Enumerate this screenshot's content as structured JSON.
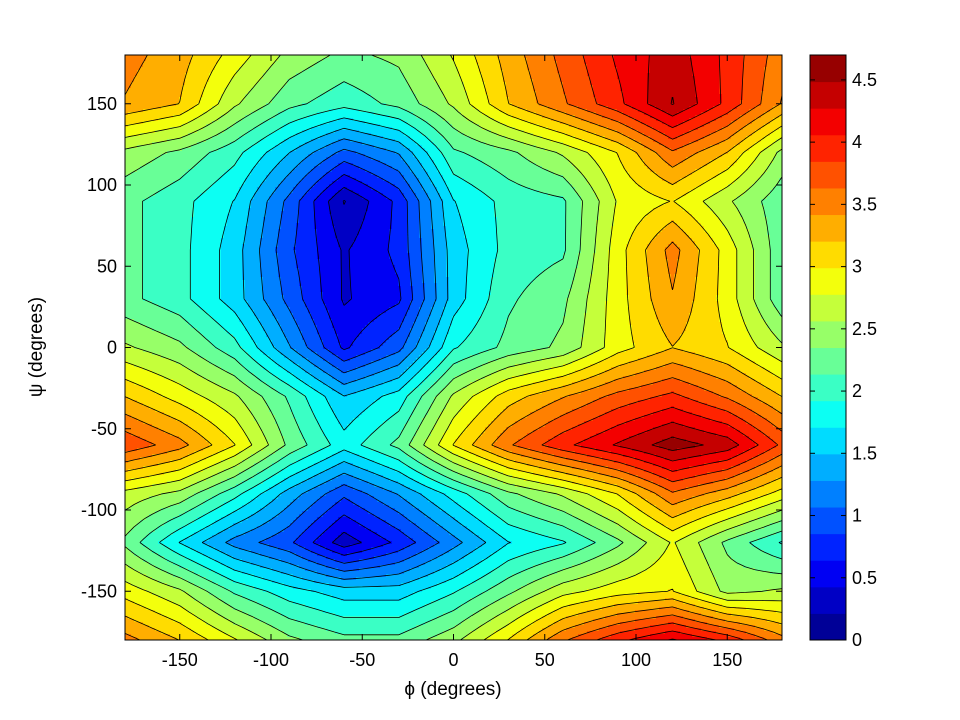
{
  "chart_data": {
    "type": "heatmap",
    "subtype": "filled-contour",
    "title": "",
    "xlabel": "ϕ (degrees)",
    "ylabel": "ψ (degrees)",
    "xlim": [
      -180,
      180
    ],
    "ylim": [
      -180,
      180
    ],
    "xticks": [
      "-150",
      "-100",
      "-50",
      "0",
      "50",
      "100",
      "150"
    ],
    "yticks": [
      "-150",
      "-100",
      "-50",
      "0",
      "50",
      "100",
      "150"
    ],
    "xtick_values": [
      -150,
      -100,
      -50,
      0,
      50,
      100,
      150
    ],
    "ytick_values": [
      -150,
      -100,
      -50,
      0,
      50,
      100,
      150
    ],
    "colorbar": {
      "colormap": "jet",
      "range": [
        0,
        4.7
      ],
      "tick_values": [
        0,
        0.5,
        1,
        1.5,
        2,
        2.5,
        3,
        3.5,
        4,
        4.5
      ],
      "tick_labels": [
        "0",
        "0.5",
        "1",
        "1.5",
        "2",
        "2.5",
        "3",
        "3.5",
        "4",
        "4.5"
      ]
    },
    "contour_levels": 22,
    "grid": false,
    "phi": [
      -180,
      -150,
      -120,
      -90,
      -60,
      -30,
      0,
      30,
      60,
      90,
      120,
      150,
      180
    ],
    "psi": [
      -180,
      -150,
      -120,
      -90,
      -60,
      -30,
      0,
      30,
      60,
      90,
      120,
      150,
      180
    ],
    "z": [
      [
        3.5,
        3.2,
        2.8,
        2.4,
        2.2,
        2.2,
        2.5,
        3.0,
        3.6,
        4.0,
        4.3,
        4.0,
        3.5
      ],
      [
        2.9,
        2.6,
        2.1,
        1.8,
        1.6,
        1.6,
        1.9,
        2.3,
        2.7,
        2.9,
        3.0,
        2.5,
        2.6
      ],
      [
        2.3,
        1.7,
        1.2,
        0.9,
        0.3,
        0.7,
        1.2,
        1.7,
        1.9,
        2.3,
        2.8,
        2.3,
        1.9
      ],
      [
        2.7,
        2.5,
        2.0,
        1.4,
        0.9,
        1.3,
        1.8,
        2.3,
        2.6,
        3.0,
        3.6,
        3.3,
        2.9
      ],
      [
        3.8,
        3.5,
        3.0,
        2.3,
        1.8,
        2.2,
        3.0,
        3.6,
        4.0,
        4.3,
        4.6,
        4.4,
        3.8
      ],
      [
        3.2,
        2.9,
        2.6,
        2.1,
        1.5,
        1.8,
        2.6,
        3.1,
        3.4,
        3.7,
        3.9,
        3.6,
        3.2
      ],
      [
        2.6,
        2.4,
        2.0,
        1.3,
        0.6,
        1.0,
        1.9,
        2.2,
        2.4,
        2.9,
        3.2,
        3.0,
        2.6
      ],
      [
        2.2,
        2.0,
        1.6,
        1.0,
        0.4,
        0.6,
        1.6,
        2.1,
        2.3,
        2.9,
        3.4,
        2.9,
        2.2
      ],
      [
        2.2,
        2.0,
        1.6,
        0.9,
        0.4,
        0.7,
        1.6,
        2.0,
        2.1,
        2.9,
        3.5,
        2.9,
        2.2
      ],
      [
        2.2,
        2.0,
        1.7,
        1.0,
        0.2,
        0.7,
        1.7,
        2.0,
        2.1,
        2.8,
        3.0,
        2.6,
        2.2
      ],
      [
        2.5,
        2.3,
        2.0,
        1.5,
        1.0,
        1.3,
        2.1,
        2.3,
        2.6,
        3.0,
        3.6,
        3.2,
        2.5
      ],
      [
        3.4,
        3.2,
        2.6,
        2.2,
        2.0,
        2.2,
        2.6,
        3.2,
        3.6,
        4.0,
        4.5,
        4.0,
        3.4
      ],
      [
        3.5,
        3.3,
        2.9,
        2.5,
        2.3,
        2.4,
        2.8,
        3.3,
        3.7,
        4.1,
        4.4,
        4.0,
        3.5
      ]
    ]
  }
}
